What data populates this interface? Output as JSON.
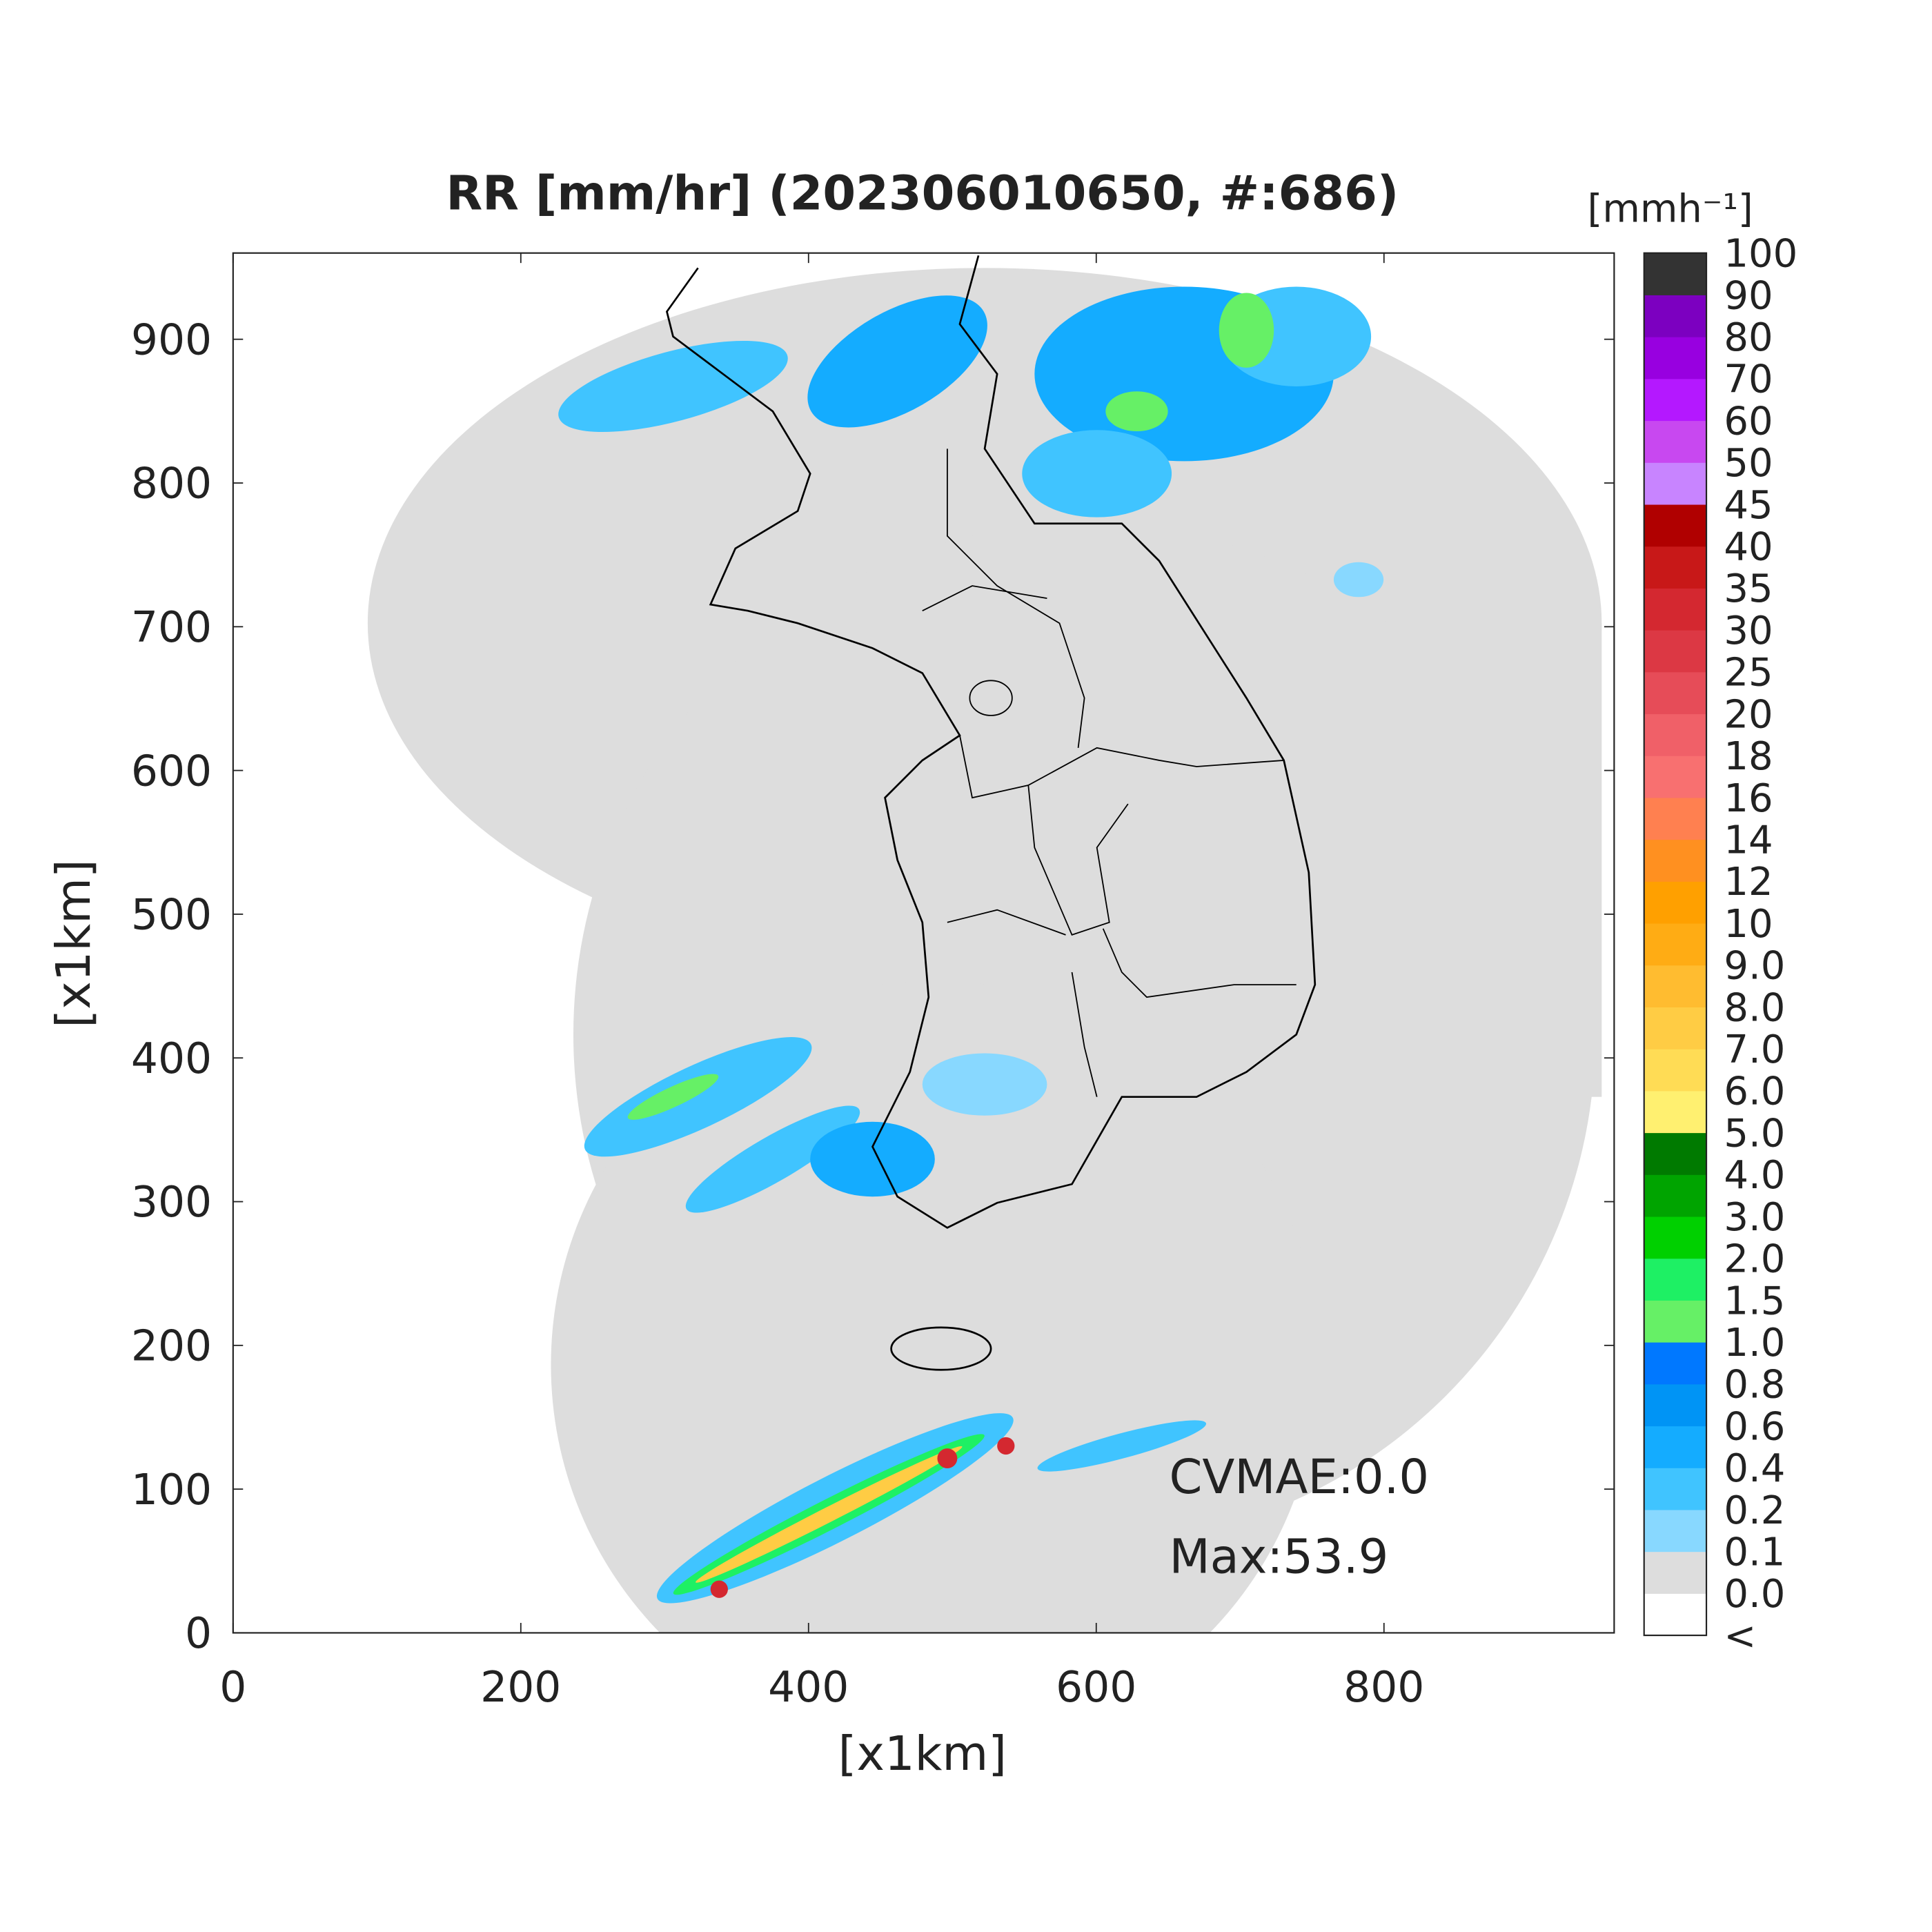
{
  "map": {
    "title": "RR [mm/hr] (202306010650, #:686)",
    "xlabel": "[x1km]",
    "ylabel": "[x1km]",
    "xlim": [
      0,
      960
    ],
    "ylim": [
      0,
      960
    ],
    "xticks": [
      0,
      200,
      400,
      600,
      800
    ],
    "yticks": [
      0,
      100,
      200,
      300,
      400,
      500,
      600,
      700,
      800,
      900
    ],
    "annotations": [
      "CVMAE:0.0",
      "Max:53.9"
    ]
  },
  "colorbar": {
    "unit": "[mmh⁻¹]",
    "labels": [
      "<",
      "0.0",
      "0.1",
      "0.2",
      "0.4",
      "0.6",
      "0.8",
      "1.0",
      "1.5",
      "2.0",
      "3.0",
      "4.0",
      "5.0",
      "6.0",
      "7.0",
      "8.0",
      "9.0",
      "10",
      "12",
      "14",
      "16",
      "18",
      "20",
      "25",
      "30",
      "35",
      "40",
      "45",
      "50",
      "60",
      "70",
      "80",
      "90",
      "100"
    ],
    "colors": [
      "#ffffff",
      "#dddddd",
      "#88d8ff",
      "#40c4ff",
      "#14acff",
      "#0094f5",
      "#0078ff",
      "#66f066",
      "#1ef064",
      "#00d000",
      "#00a400",
      "#007a00",
      "#fff070",
      "#ffdc55",
      "#ffcc44",
      "#ffbc30",
      "#ffac14",
      "#ffa000",
      "#ff9020",
      "#ff8050",
      "#f87070",
      "#f06068",
      "#e64c58",
      "#dc3844",
      "#d42830",
      "#c81818",
      "#b00000",
      "#c884ff",
      "#c848f0",
      "#b418ff",
      "#9800e0",
      "#7c00c0",
      "#333333"
    ]
  }
}
